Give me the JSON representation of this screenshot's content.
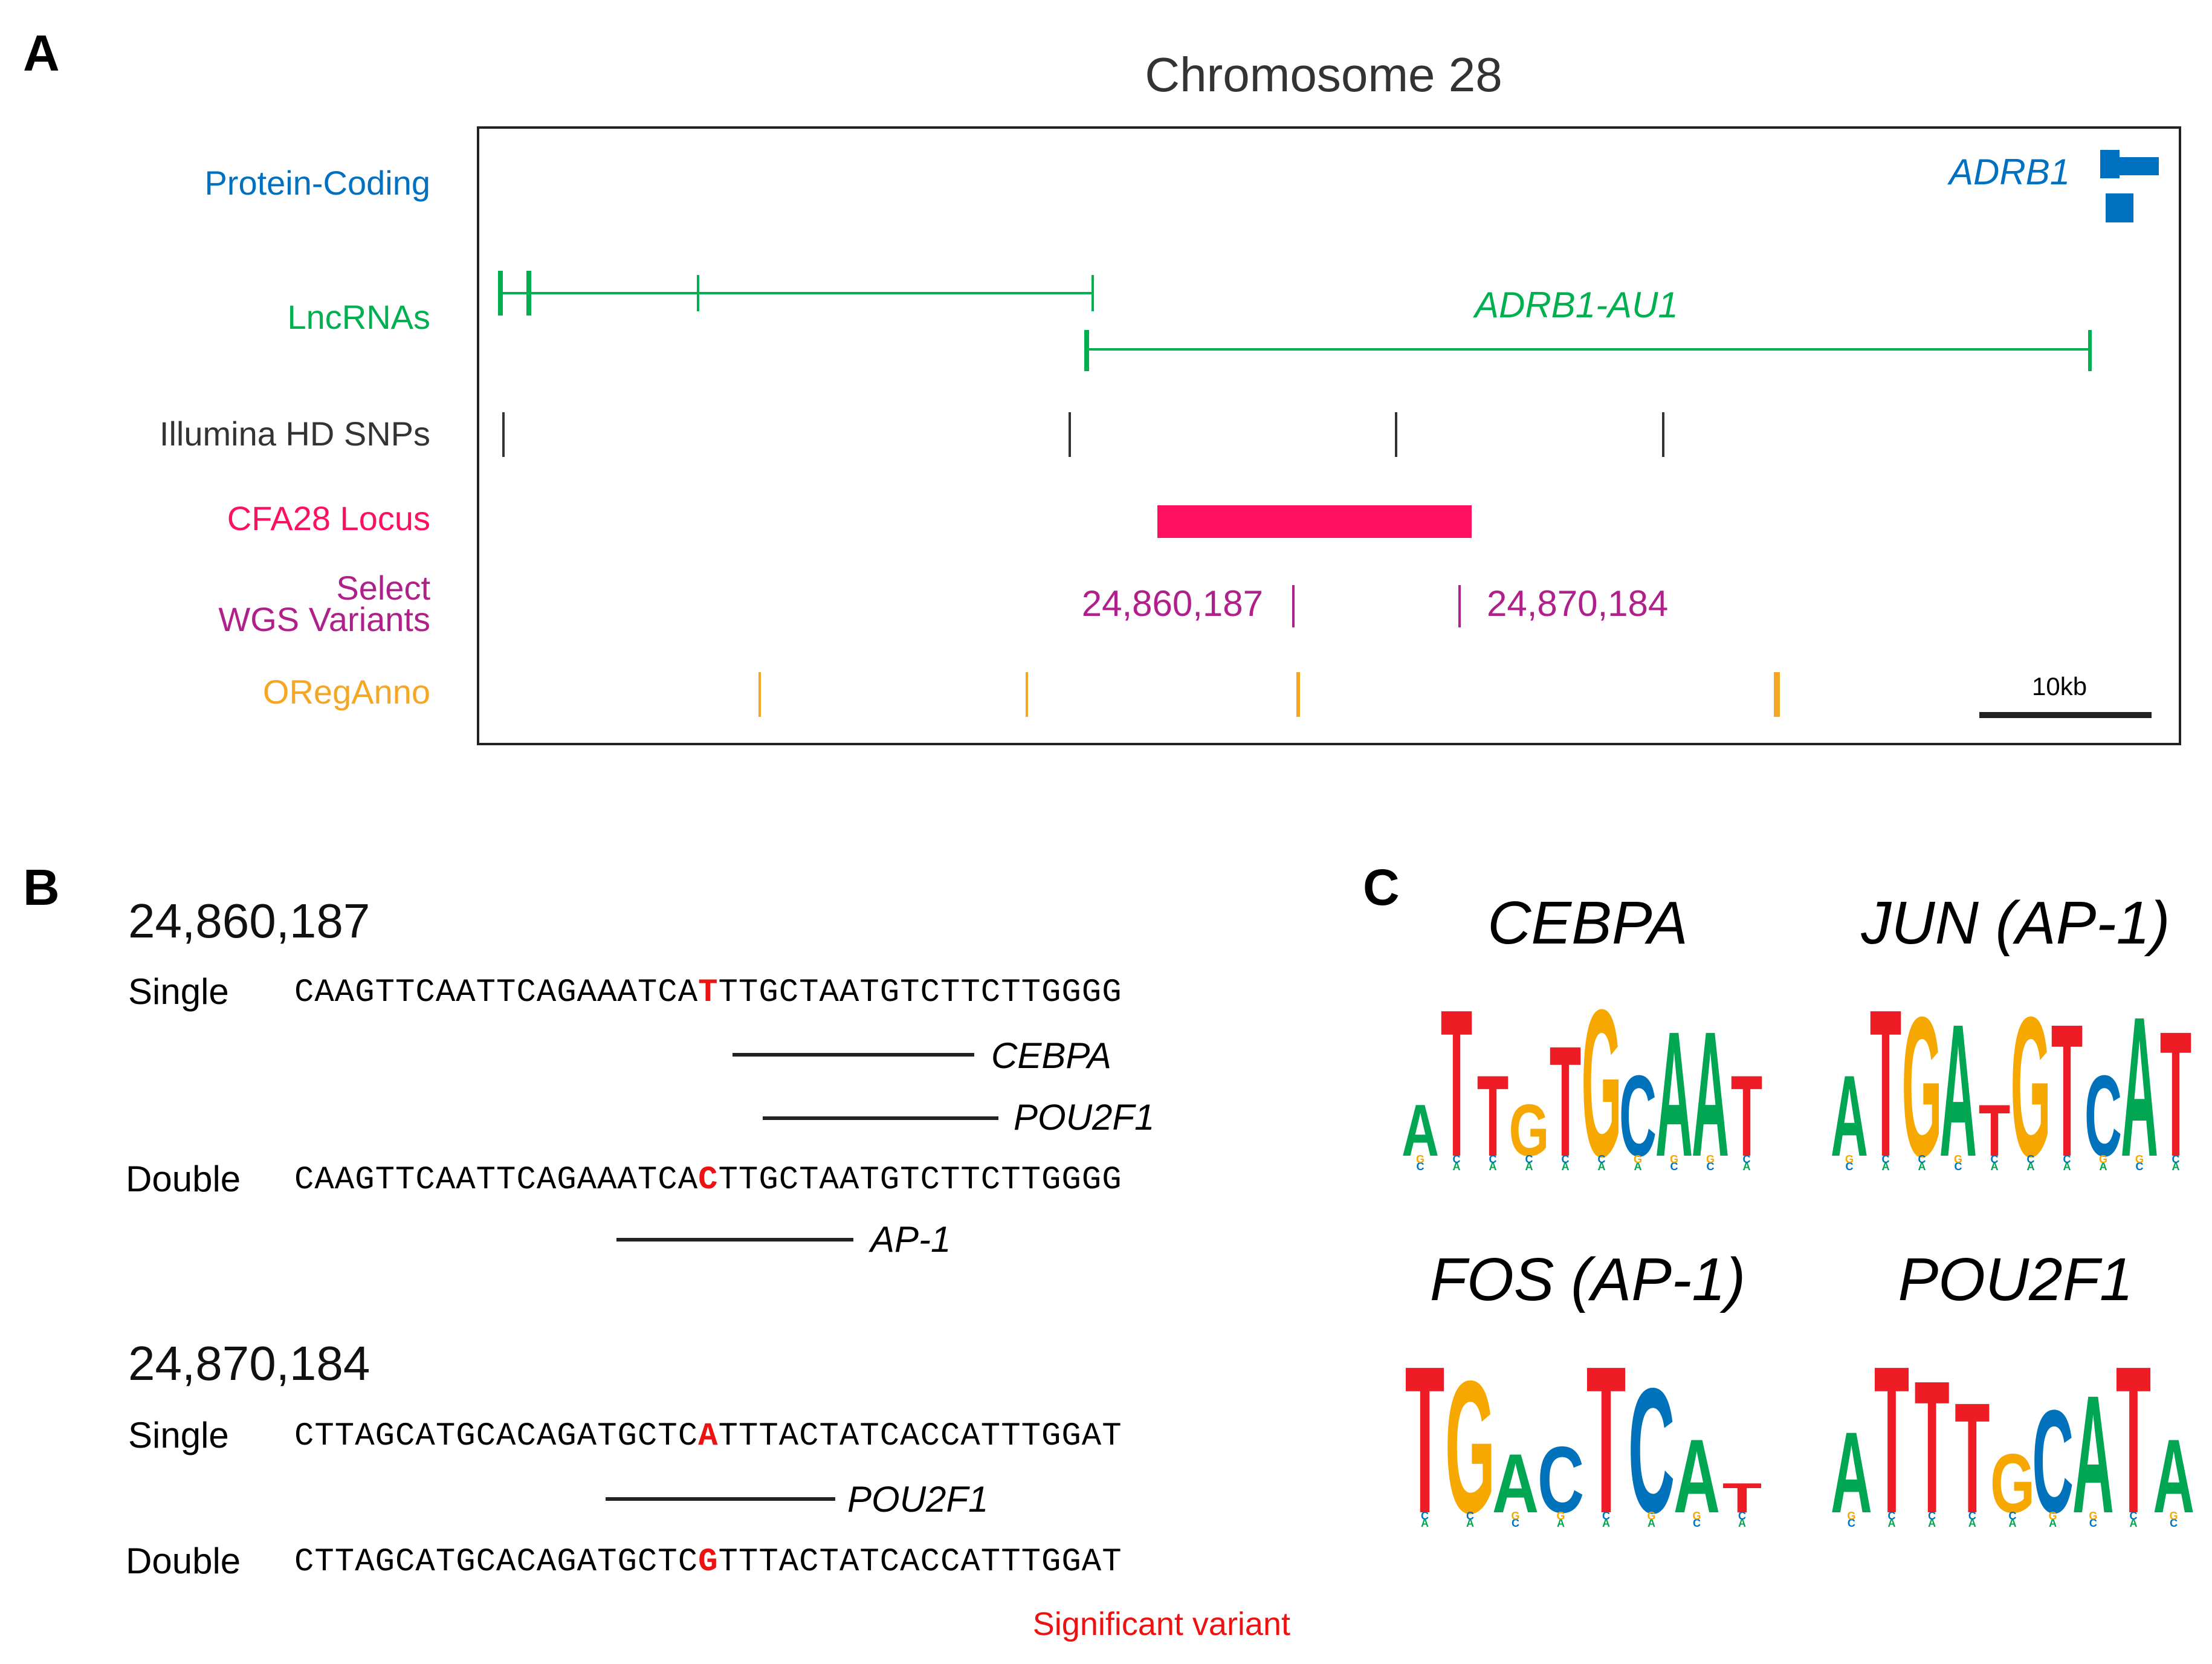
{
  "panelA": {
    "letter": "A",
    "title": "Chromosome 28",
    "tracks": {
      "protein_coding": "Protein-Coding",
      "lncrnas": "LncRNAs",
      "snps": "Illumina HD SNPs",
      "locus": "CFA28 Locus",
      "wgs_line1": "Select",
      "wgs_line2": "WGS Variants",
      "oreganno": "ORegAnno"
    },
    "genes": {
      "adrb1": "ADRB1",
      "adrb1_au1": "ADRB1-AU1"
    },
    "variants": {
      "left": "24,860,187",
      "right": "24,870,184"
    },
    "scale_bar": "10kb",
    "colors": {
      "protein_coding": "#0070c0",
      "lncrna": "#00b050",
      "snp": "#333333",
      "locus": "#ff0f5f",
      "wgs": "#b0208a",
      "oreganno": "#f5a623"
    }
  },
  "panelB": {
    "letter": "B",
    "variant1": {
      "position": "24,860,187",
      "single_label": "Single",
      "single_pre": "CAAGTTCAATTCAGAAATCA",
      "single_base": "T",
      "single_post": "TTGCTAATGTCTTCTTGGGG",
      "tf1": "CEBPA",
      "tf2": "POU2F1",
      "double_label": "Double",
      "double_pre": "CAAGTTCAATTCAGAAATCA",
      "double_base": "C",
      "double_post": "TTGCTAATGTCTTCTTGGGG",
      "tf3": "AP-1"
    },
    "variant2": {
      "position": "24,870,184",
      "single_label": "Single",
      "single_pre": "CTTAGCATGCACAGATGCTC",
      "single_base": "A",
      "single_post": "TTTACTATCACCATTTGGAT",
      "tf1": "POU2F1",
      "double_label": "Double",
      "double_pre": "CTTAGCATGCACAGATGCTC",
      "double_base": "G",
      "double_post": "TTTACTATCACCATTTGGAT"
    },
    "legend": "Significant variant"
  },
  "panelC": {
    "letter": "C",
    "motifs": [
      {
        "name": "CEBPA",
        "letters": [
          "A",
          "T",
          "T",
          "G",
          "T",
          "G",
          "C",
          "A",
          "A",
          "T"
        ]
      },
      {
        "name": "JUN (AP-1)",
        "letters": [
          "A",
          "T",
          "G",
          "A",
          "T",
          "G",
          "T",
          "C",
          "A",
          "T"
        ]
      },
      {
        "name": "FOS (AP-1)",
        "letters": [
          "T",
          "G",
          "A",
          "C",
          "T",
          "C",
          "A",
          "T"
        ]
      },
      {
        "name": "POU2F1",
        "letters": [
          "A",
          "T",
          "T",
          "T",
          "G",
          "C",
          "A",
          "T",
          "A"
        ]
      }
    ],
    "nucleotide_colors": {
      "A": "#00a651",
      "C": "#0072bc",
      "G": "#f7a800",
      "T": "#ee1c25"
    }
  }
}
